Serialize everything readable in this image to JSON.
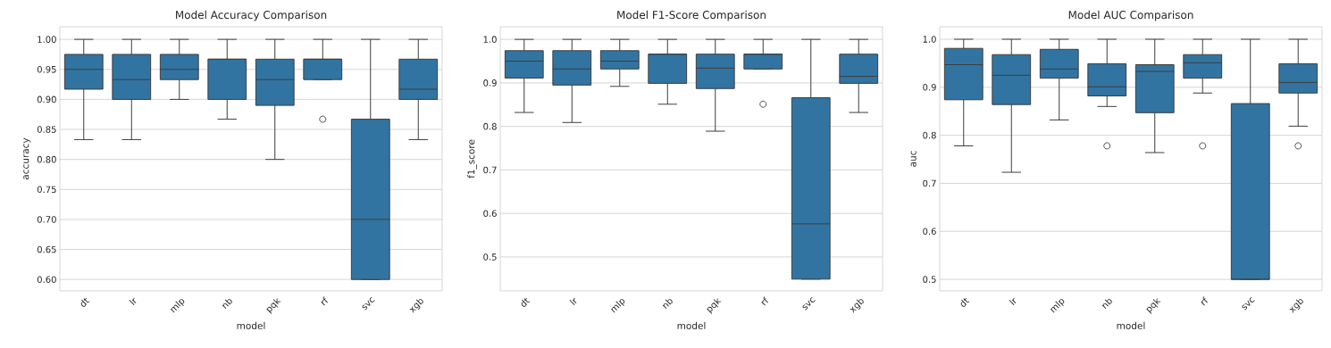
{
  "chart_data": [
    {
      "type": "box",
      "title": "Model Accuracy Comparison",
      "xlabel": "model",
      "ylabel": "accuracy",
      "categories": [
        "dt",
        "lr",
        "mlp",
        "nb",
        "pqk",
        "rf",
        "svc",
        "xgb"
      ],
      "color": "#3274a1",
      "grid": "y",
      "ylim": [
        0.581,
        1.021
      ],
      "yticks": [
        {
          "value": 0.6,
          "label": "0.60"
        },
        {
          "value": 0.65,
          "label": "0.65"
        },
        {
          "value": 0.7,
          "label": "0.70"
        },
        {
          "value": 0.75,
          "label": "0.75"
        },
        {
          "value": 0.8,
          "label": "0.80"
        },
        {
          "value": 0.85,
          "label": "0.85"
        },
        {
          "value": 0.9,
          "label": "0.90"
        },
        {
          "value": 0.95,
          "label": "0.95"
        },
        {
          "value": 1.0,
          "label": "1.00"
        }
      ],
      "boxes": [
        {
          "low": 0.833,
          "q1": 0.917,
          "median": 0.95,
          "q3": 0.975,
          "high": 1.0
        },
        {
          "low": 0.833,
          "q1": 0.9,
          "median": 0.933,
          "q3": 0.975,
          "high": 1.0
        },
        {
          "low": 0.9,
          "q1": 0.933,
          "median": 0.95,
          "q3": 0.975,
          "high": 1.0
        },
        {
          "low": 0.867,
          "q1": 0.9,
          "median": 0.967,
          "q3": 0.967,
          "high": 1.0
        },
        {
          "low": 0.8,
          "q1": 0.89,
          "median": 0.933,
          "q3": 0.967,
          "high": 1.0
        },
        {
          "low": 0.933,
          "q1": 0.933,
          "median": 0.967,
          "q3": 0.967,
          "high": 1.0,
          "outliers": [
            0.867
          ]
        },
        {
          "low": 0.6,
          "q1": 0.6,
          "median": 0.7,
          "q3": 0.867,
          "high": 1.0
        },
        {
          "low": 0.833,
          "q1": 0.9,
          "median": 0.917,
          "q3": 0.967,
          "high": 1.0
        }
      ]
    },
    {
      "type": "box",
      "title": "Model F1-Score Comparison",
      "xlabel": "model",
      "ylabel": "f1_score",
      "categories": [
        "dt",
        "lr",
        "mlp",
        "nb",
        "pqk",
        "rf",
        "svc",
        "xgb"
      ],
      "color": "#3274a1",
      "grid": "y",
      "ylim": [
        0.422,
        1.029
      ],
      "yticks": [
        {
          "value": 0.5,
          "label": "0.5"
        },
        {
          "value": 0.6,
          "label": "0.6"
        },
        {
          "value": 0.7,
          "label": "0.7"
        },
        {
          "value": 0.8,
          "label": "0.8"
        },
        {
          "value": 0.9,
          "label": "0.9"
        },
        {
          "value": 1.0,
          "label": "1.0"
        }
      ],
      "boxes": [
        {
          "low": 0.832,
          "q1": 0.911,
          "median": 0.95,
          "q3": 0.974,
          "high": 1.0
        },
        {
          "low": 0.809,
          "q1": 0.895,
          "median": 0.932,
          "q3": 0.974,
          "high": 1.0
        },
        {
          "low": 0.892,
          "q1": 0.932,
          "median": 0.95,
          "q3": 0.974,
          "high": 1.0
        },
        {
          "low": 0.851,
          "q1": 0.899,
          "median": 0.966,
          "q3": 0.966,
          "high": 1.0
        },
        {
          "low": 0.789,
          "q1": 0.887,
          "median": 0.934,
          "q3": 0.966,
          "high": 1.0
        },
        {
          "low": 0.932,
          "q1": 0.932,
          "median": 0.966,
          "q3": 0.966,
          "high": 1.0,
          "outliers": [
            0.851
          ]
        },
        {
          "low": 0.449,
          "q1": 0.449,
          "median": 0.576,
          "q3": 0.866,
          "high": 1.0
        },
        {
          "low": 0.832,
          "q1": 0.899,
          "median": 0.915,
          "q3": 0.966,
          "high": 1.0
        }
      ]
    },
    {
      "type": "box",
      "title": "Model AUC Comparison",
      "xlabel": "model",
      "ylabel": "auc",
      "categories": [
        "dt",
        "lr",
        "mlp",
        "nb",
        "pqk",
        "rf",
        "svc",
        "xgb"
      ],
      "color": "#3274a1",
      "grid": "y",
      "ylim": [
        0.476,
        1.026
      ],
      "yticks": [
        {
          "value": 0.5,
          "label": "0.5"
        },
        {
          "value": 0.6,
          "label": "0.6"
        },
        {
          "value": 0.7,
          "label": "0.7"
        },
        {
          "value": 0.8,
          "label": "0.8"
        },
        {
          "value": 0.9,
          "label": "0.9"
        },
        {
          "value": 1.0,
          "label": "1.0"
        }
      ],
      "boxes": [
        {
          "low": 0.778,
          "q1": 0.874,
          "median": 0.947,
          "q3": 0.981,
          "high": 1.0
        },
        {
          "low": 0.723,
          "q1": 0.864,
          "median": 0.925,
          "q3": 0.968,
          "high": 1.0
        },
        {
          "low": 0.832,
          "q1": 0.919,
          "median": 0.938,
          "q3": 0.979,
          "high": 1.0
        },
        {
          "low": 0.86,
          "q1": 0.882,
          "median": 0.901,
          "q3": 0.949,
          "high": 1.0,
          "outliers": [
            0.778
          ]
        },
        {
          "low": 0.764,
          "q1": 0.847,
          "median": 0.933,
          "q3": 0.947,
          "high": 1.0
        },
        {
          "low": 0.888,
          "q1": 0.919,
          "median": 0.951,
          "q3": 0.968,
          "high": 1.0,
          "outliers": [
            0.778
          ]
        },
        {
          "low": 0.5,
          "q1": 0.5,
          "median": 0.5,
          "q3": 0.866,
          "high": 1.0
        },
        {
          "low": 0.819,
          "q1": 0.888,
          "median": 0.91,
          "q3": 0.949,
          "high": 1.0,
          "outliers": [
            0.778
          ]
        }
      ]
    }
  ]
}
